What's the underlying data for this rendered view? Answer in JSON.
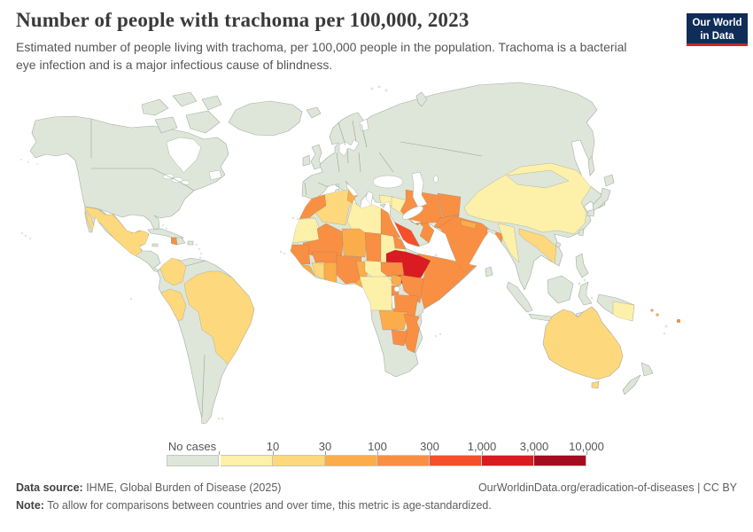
{
  "header": {
    "title": "Number of people with trachoma per 100,000, 2023",
    "subtitle_lines": [
      "Estimated number of people living with trachoma, per 100,000 people in the population. Trachoma is a bacterial",
      "eye infection and is a major infectious cause of blindness."
    ],
    "logo": {
      "line1": "Our World",
      "line2": "in Data",
      "bg_color": "#102d59",
      "accent_color": "#c9252c"
    }
  },
  "footer": {
    "source_label": "Data source:",
    "source_text": " IHME, Global Burden of Disease (2025)",
    "link_text": "OurWorldinData.org/eradication-of-diseases",
    "license_sep": " | ",
    "license_text": "CC BY",
    "note_label": "Note:",
    "note_text": " To allow for comparisons between countries and over time, this metric is age-standardized."
  },
  "chart_data": {
    "type": "choropleth_map",
    "title": "Number of people with trachoma per 100,000",
    "year": "2023",
    "unit": "people with trachoma per 100,000 population",
    "legend_first_label": "No cases",
    "no_data_color": "#f2f4f0",
    "ocean_color": "#ffffff",
    "bins": [
      {
        "range": "No cases",
        "tick": "",
        "color": "#dee6da"
      },
      {
        "range": "0 – 10",
        "tick": "10",
        "color": "#fdf0a9"
      },
      {
        "range": "10 – 30",
        "tick": "30",
        "color": "#fed87c"
      },
      {
        "range": "30 – 100",
        "tick": "100",
        "color": "#fbad4b"
      },
      {
        "range": "100 – 300",
        "tick": "300",
        "color": "#f98f43"
      },
      {
        "range": "300 – 1,000",
        "tick": "1,000",
        "color": "#f4502b"
      },
      {
        "range": "1,000 – 3,000",
        "tick": "3,000",
        "color": "#da1b21"
      },
      {
        "range": "3,000 – 10,000",
        "tick": "10,000",
        "color": "#a60c20"
      }
    ],
    "regions": [
      {
        "id": "north-america",
        "name": "United States & Canada",
        "bin": 0
      },
      {
        "id": "greenland",
        "name": "Greenland",
        "bin": 0
      },
      {
        "id": "eurasia",
        "name": "Europe, Russia, Turkey, Saudi Arabia & Central Asia",
        "bin": 0
      },
      {
        "id": "south-america",
        "name": "Venezuela, Ecuador, Bolivia, Argentina, Chile & others",
        "bin": 0
      },
      {
        "id": "africa",
        "name": "Angola, Namibia, Botswana, South Africa, Gabon & others",
        "bin": 0
      },
      {
        "id": "madagascar",
        "name": "Madagascar",
        "bin": 0
      },
      {
        "id": "japan",
        "name": "Japan",
        "bin": 0
      },
      {
        "id": "indonesia",
        "name": "Indonesia",
        "bin": 0
      },
      {
        "id": "philippines",
        "name": "Philippines",
        "bin": 0
      },
      {
        "id": "new-zealand",
        "name": "New Zealand",
        "bin": 0
      },
      {
        "id": "cuba",
        "name": "Cuba",
        "bin": 0
      },
      {
        "id": "hispaniola",
        "name": "Dominican Republic",
        "bin": 0
      },
      {
        "id": "sri-lanka",
        "name": "Sri Lanka",
        "bin": 0
      },
      {
        "id": "new-guinea",
        "name": "Indonesia (West New Guinea)",
        "bin": 0
      },
      {
        "id": "bangladesh",
        "name": "Bangladesh",
        "bin": 0
      },
      {
        "id": "mongolia",
        "name": "Mongolia",
        "bin": 0
      },
      {
        "id": "mexico",
        "name": "Mexico & Guatemala",
        "bin": 2
      },
      {
        "id": "haiti",
        "name": "Haiti",
        "bin": 4
      },
      {
        "id": "colombia",
        "name": "Colombia",
        "bin": 2
      },
      {
        "id": "peru",
        "name": "Peru",
        "bin": 2
      },
      {
        "id": "brazil",
        "name": "Brazil",
        "bin": 2
      },
      {
        "id": "morocco",
        "name": "Morocco",
        "bin": 4
      },
      {
        "id": "western-sahara",
        "name": "Western Sahara",
        "bin": null,
        "no_data": true
      },
      {
        "id": "algeria",
        "name": "Algeria",
        "bin": 2
      },
      {
        "id": "tunisia",
        "name": "Tunisia",
        "bin": 3
      },
      {
        "id": "libya",
        "name": "Libya",
        "bin": 1
      },
      {
        "id": "egypt",
        "name": "Egypt",
        "bin": 4
      },
      {
        "id": "mauritania",
        "name": "Mauritania",
        "bin": 1
      },
      {
        "id": "mali",
        "name": "Mali",
        "bin": 4
      },
      {
        "id": "niger",
        "name": "Niger",
        "bin": 3
      },
      {
        "id": "chad",
        "name": "Chad",
        "bin": 4
      },
      {
        "id": "sudan",
        "name": "Sudan",
        "bin": 1
      },
      {
        "id": "eritrea",
        "name": "Eritrea & Djibouti",
        "bin": 4
      },
      {
        "id": "ethiopia",
        "name": "Ethiopia",
        "bin": 6
      },
      {
        "id": "somalia",
        "name": "Somalia",
        "bin": 4
      },
      {
        "id": "senegal-guinea",
        "name": "Senegal, Gambia & Guinea",
        "bin": 4
      },
      {
        "id": "sierra-leone-liberia",
        "name": "Sierra Leone & Liberia",
        "bin": 3
      },
      {
        "id": "ivory-coast",
        "name": "Côte d'Ivoire",
        "bin": 2
      },
      {
        "id": "ghana-togo-benin",
        "name": "Ghana, Togo & Benin",
        "bin": 3
      },
      {
        "id": "burkina-faso",
        "name": "Burkina Faso",
        "bin": 4
      },
      {
        "id": "nigeria",
        "name": "Nigeria",
        "bin": 4
      },
      {
        "id": "cameroon",
        "name": "Cameroon",
        "bin": 3
      },
      {
        "id": "central-african-republic",
        "name": "Central African Republic",
        "bin": 1
      },
      {
        "id": "south-sudan",
        "name": "South Sudan",
        "bin": 4
      },
      {
        "id": "drc",
        "name": "Democratic Republic of Congo",
        "bin": 1
      },
      {
        "id": "uganda",
        "name": "Uganda",
        "bin": 3
      },
      {
        "id": "kenya",
        "name": "Kenya",
        "bin": 4
      },
      {
        "id": "rwanda-burundi",
        "name": "Rwanda & Burundi",
        "bin": 4
      },
      {
        "id": "tanzania",
        "name": "Tanzania",
        "bin": 4
      },
      {
        "id": "zambia",
        "name": "Zambia",
        "bin": 3
      },
      {
        "id": "malawi-mozambique",
        "name": "Malawi & Mozambique",
        "bin": 4
      },
      {
        "id": "zimbabwe",
        "name": "Zimbabwe",
        "bin": 4
      },
      {
        "id": "syria",
        "name": "Syria",
        "bin": 1
      },
      {
        "id": "iraq",
        "name": "Iraq",
        "bin": 1
      },
      {
        "id": "iran",
        "name": "Iran",
        "bin": 4
      },
      {
        "id": "afghanistan",
        "name": "Afghanistan",
        "bin": 4
      },
      {
        "id": "pakistan",
        "name": "Pakistan",
        "bin": 4
      },
      {
        "id": "india",
        "name": "India",
        "bin": 4
      },
      {
        "id": "nepal",
        "name": "Nepal",
        "bin": 3
      },
      {
        "id": "china",
        "name": "China",
        "bin": 1
      },
      {
        "id": "myanmar",
        "name": "Myanmar",
        "bin": 1
      },
      {
        "id": "laos-vietnam",
        "name": "Laos & Vietnam",
        "bin": 2
      },
      {
        "id": "yemen",
        "name": "Yemen",
        "bin": 5
      },
      {
        "id": "oman",
        "name": "Oman",
        "bin": 4
      },
      {
        "id": "uae",
        "name": "United Arab Emirates",
        "bin": 4
      },
      {
        "id": "papua-new-guinea",
        "name": "Papua New Guinea",
        "bin": 1
      },
      {
        "id": "australia",
        "name": "Australia",
        "bin": 2
      },
      {
        "id": "tasmania",
        "name": "Australia (Tasmania)",
        "bin": 2
      },
      {
        "id": "fiji",
        "name": "Fiji",
        "bin": 4
      },
      {
        "id": "solomon-islands",
        "name": "Solomon Islands",
        "bin": 3
      }
    ]
  }
}
